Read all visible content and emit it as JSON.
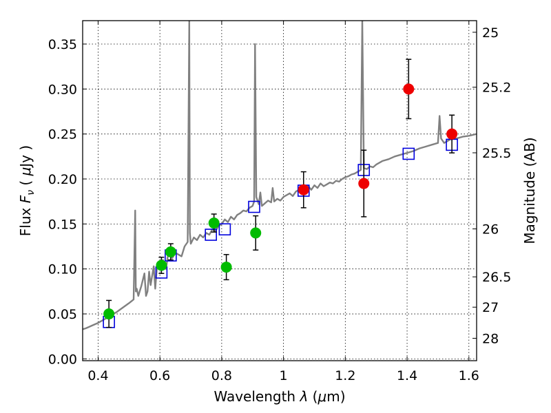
{
  "chart_data": {
    "type": "scatter",
    "title": "",
    "xlabel_prefix": "Wavelength ",
    "xlabel_symbol": "λ",
    "xlabel_unit_open": " (",
    "xlabel_unit_mu": "μ",
    "xlabel_unit_rest": "m)",
    "ylabel_prefix": "Flux ",
    "ylabel_symbol": "F",
    "ylabel_subscript": "ν",
    "ylabel_unit_open": " ( ",
    "ylabel_unit_mu": "μ",
    "ylabel_unit_rest": "Jy )",
    "y2label": "Magnitude (AB)",
    "xlim": [
      0.35,
      1.625
    ],
    "ylim": [
      -0.002,
      0.376
    ],
    "grid": true,
    "x_ticks": [
      0.4,
      0.6,
      0.8,
      1.0,
      1.2,
      1.4,
      1.6
    ],
    "x_tick_labels": [
      "0.4",
      "0.6",
      "0.8",
      "1",
      "1.2",
      "1.4",
      "1.6"
    ],
    "y_ticks": [
      0.0,
      0.05,
      0.1,
      0.15,
      0.2,
      0.25,
      0.3,
      0.35
    ],
    "y_tick_labels": [
      "0.00",
      "0.05",
      "0.10",
      "0.15",
      "0.20",
      "0.25",
      "0.30",
      "0.35"
    ],
    "y2_ticks": [
      {
        "label": "25",
        "flux": 0.3631
      },
      {
        "label": "25.2",
        "flux": 0.302
      },
      {
        "label": "25.5",
        "flux": 0.2291
      },
      {
        "label": "26",
        "flux": 0.1445
      },
      {
        "label": "26.5",
        "flux": 0.0912
      },
      {
        "label": "27",
        "flux": 0.0575
      },
      {
        "label": "28",
        "flux": 0.0229
      }
    ],
    "series": [
      {
        "role": "model-spectrum",
        "color": "#808080",
        "style": "line",
        "x": [
          0.35,
          0.36,
          0.38,
          0.4,
          0.42,
          0.44,
          0.46,
          0.48,
          0.5,
          0.515,
          0.52,
          0.522,
          0.525,
          0.53,
          0.54,
          0.55,
          0.555,
          0.56,
          0.565,
          0.57,
          0.58,
          0.585,
          0.59,
          0.6,
          0.61,
          0.62,
          0.625,
          0.63,
          0.64,
          0.65,
          0.66,
          0.67,
          0.68,
          0.69,
          0.695,
          0.697,
          0.7,
          0.71,
          0.72,
          0.73,
          0.74,
          0.75,
          0.76,
          0.77,
          0.78,
          0.79,
          0.8,
          0.81,
          0.82,
          0.83,
          0.84,
          0.85,
          0.86,
          0.87,
          0.88,
          0.89,
          0.9,
          0.905,
          0.908,
          0.912,
          0.92,
          0.925,
          0.93,
          0.94,
          0.95,
          0.96,
          0.965,
          0.97,
          0.98,
          0.99,
          1.0,
          1.01,
          1.02,
          1.03,
          1.04,
          1.05,
          1.06,
          1.07,
          1.08,
          1.09,
          1.1,
          1.11,
          1.12,
          1.13,
          1.14,
          1.15,
          1.16,
          1.17,
          1.18,
          1.19,
          1.2,
          1.21,
          1.22,
          1.23,
          1.24,
          1.25,
          1.255,
          1.26,
          1.27,
          1.28,
          1.29,
          1.3,
          1.32,
          1.34,
          1.36,
          1.38,
          1.4,
          1.42,
          1.44,
          1.46,
          1.48,
          1.5,
          1.505,
          1.51,
          1.52,
          1.53,
          1.54,
          1.56,
          1.58,
          1.6,
          1.625
        ],
        "y": [
          0.033,
          0.034,
          0.037,
          0.04,
          0.044,
          0.048,
          0.052,
          0.057,
          0.062,
          0.066,
          0.165,
          0.075,
          0.078,
          0.07,
          0.081,
          0.095,
          0.07,
          0.075,
          0.097,
          0.082,
          0.103,
          0.078,
          0.1,
          0.106,
          0.11,
          0.1,
          0.113,
          0.118,
          0.112,
          0.118,
          0.116,
          0.114,
          0.125,
          0.13,
          0.376,
          0.14,
          0.128,
          0.135,
          0.132,
          0.138,
          0.135,
          0.14,
          0.138,
          0.144,
          0.142,
          0.148,
          0.15,
          0.155,
          0.152,
          0.158,
          0.155,
          0.16,
          0.162,
          0.165,
          0.164,
          0.168,
          0.17,
          0.175,
          0.35,
          0.18,
          0.172,
          0.185,
          0.17,
          0.173,
          0.176,
          0.174,
          0.19,
          0.175,
          0.178,
          0.176,
          0.18,
          0.182,
          0.184,
          0.181,
          0.186,
          0.188,
          0.185,
          0.19,
          0.192,
          0.188,
          0.193,
          0.19,
          0.195,
          0.192,
          0.194,
          0.196,
          0.195,
          0.198,
          0.197,
          0.2,
          0.202,
          0.203,
          0.205,
          0.206,
          0.208,
          0.21,
          0.376,
          0.212,
          0.211,
          0.214,
          0.213,
          0.216,
          0.22,
          0.222,
          0.225,
          0.227,
          0.229,
          0.231,
          0.234,
          0.236,
          0.238,
          0.24,
          0.27,
          0.245,
          0.24,
          0.242,
          0.244,
          0.245,
          0.247,
          0.248,
          0.25
        ]
      },
      {
        "role": "model-photometry",
        "color": "#0000dd",
        "marker": "open-square",
        "x": [
          0.435,
          0.605,
          0.635,
          0.765,
          0.81,
          0.905,
          1.065,
          1.26,
          1.405,
          1.545
        ],
        "y": [
          0.041,
          0.096,
          0.115,
          0.138,
          0.144,
          0.169,
          0.187,
          0.21,
          0.228,
          0.238
        ]
      },
      {
        "role": "observed-optical",
        "color": "#00bb00",
        "marker": "filled-circle",
        "x": [
          0.435,
          0.605,
          0.635,
          0.775,
          0.815,
          0.91
        ],
        "y": [
          0.05,
          0.104,
          0.119,
          0.151,
          0.102,
          0.14
        ],
        "err": [
          0.015,
          0.009,
          0.009,
          0.01,
          0.014,
          0.019
        ]
      },
      {
        "role": "observed-nir",
        "color": "#ee0000",
        "marker": "filled-circle",
        "x": [
          1.065,
          1.26,
          1.405,
          1.545
        ],
        "y": [
          0.188,
          0.195,
          0.3,
          0.25
        ],
        "err": [
          0.02,
          0.037,
          0.033,
          0.021
        ]
      }
    ]
  }
}
